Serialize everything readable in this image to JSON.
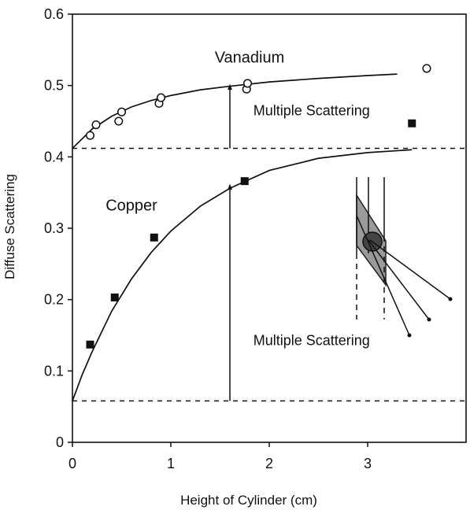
{
  "chart_data": {
    "type": "scatter",
    "xlabel": "Height of Cylinder (cm)",
    "ylabel": "Diffuse Scattering",
    "xlim": [
      0,
      4
    ],
    "ylim": [
      0,
      0.6
    ],
    "x_ticks": [
      "0",
      "1",
      "2",
      "3"
    ],
    "y_ticks": [
      "0",
      "0.1",
      "0.2",
      "0.3",
      "0.4",
      "0.5",
      "0.6"
    ],
    "grid": false,
    "series": [
      {
        "name": "Vanadium",
        "marker": "open-circle",
        "x": [
          0.18,
          0.24,
          0.47,
          0.5,
          0.88,
          0.9,
          1.77,
          1.78,
          3.6
        ],
        "y": [
          0.43,
          0.445,
          0.45,
          0.463,
          0.475,
          0.483,
          0.495,
          0.503,
          0.524
        ],
        "fit_x": [
          0.0,
          0.2,
          0.4,
          0.6,
          0.8,
          1.0,
          1.3,
          1.6,
          2.0,
          2.5,
          3.0,
          3.3
        ],
        "fit_y": [
          0.412,
          0.439,
          0.457,
          0.47,
          0.479,
          0.486,
          0.494,
          0.499,
          0.505,
          0.51,
          0.514,
          0.516
        ]
      },
      {
        "name": "Copper",
        "marker": "filled-square",
        "x": [
          0.18,
          0.43,
          0.83,
          1.75,
          3.45
        ],
        "y": [
          0.137,
          0.203,
          0.287,
          0.366,
          0.447
        ],
        "fit_x": [
          0.0,
          0.1,
          0.2,
          0.4,
          0.6,
          0.8,
          1.0,
          1.3,
          1.6,
          2.0,
          2.5,
          3.0,
          3.45
        ],
        "fit_y": [
          0.058,
          0.095,
          0.127,
          0.184,
          0.229,
          0.266,
          0.296,
          0.331,
          0.356,
          0.381,
          0.398,
          0.406,
          0.41
        ]
      }
    ],
    "reference_lines": [
      {
        "type": "horizontal",
        "y": 0.412
      },
      {
        "type": "horizontal",
        "y": 0.058
      }
    ],
    "annotations": [
      {
        "text": "Vanadium",
        "x": 1.8,
        "y": 0.532
      },
      {
        "text": "Copper",
        "x": 0.6,
        "y": 0.325
      },
      {
        "text": "Multiple Scattering",
        "x": 2.43,
        "y": 0.458
      },
      {
        "text": "Multiple Scattering",
        "x": 2.43,
        "y": 0.136
      }
    ],
    "arrows": [
      {
        "x": 1.6,
        "y_start": 0.412,
        "y_end": 0.498
      },
      {
        "x": 1.6,
        "y_start": 0.058,
        "y_end": 0.358
      }
    ],
    "inset": {
      "description": "cylinder scattering geometry"
    }
  }
}
